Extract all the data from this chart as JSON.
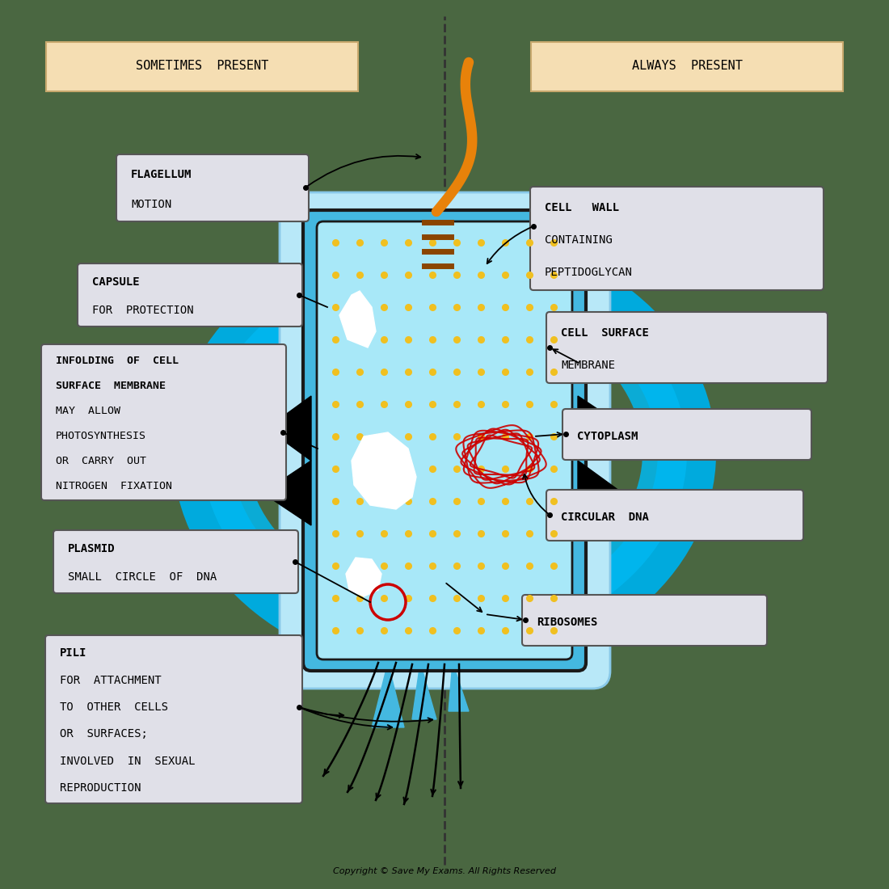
{
  "bg_color": "#4a6741",
  "fig_size": [
    11.0,
    11.0
  ],
  "dpi": 100,
  "title_left": "SOMETIMES  PRESENT",
  "title_right": "ALWAYS  PRESENT",
  "title_box_color": "#f5deb3",
  "title_box_edge": "#c8a96e",
  "flagellum_color": "#e8820a",
  "flagellum_stripe_color": "#8b4500",
  "ribosome_color": "#f0c020",
  "plasmid_color": "#cc0000",
  "dna_color": "#cc0000",
  "annotation_box_color": "#e0e0e8",
  "annotation_box_edge": "#555555",
  "dashed_line_color": "#333333",
  "copyright": "Copyright © Save My Exams. All Rights Reserved"
}
